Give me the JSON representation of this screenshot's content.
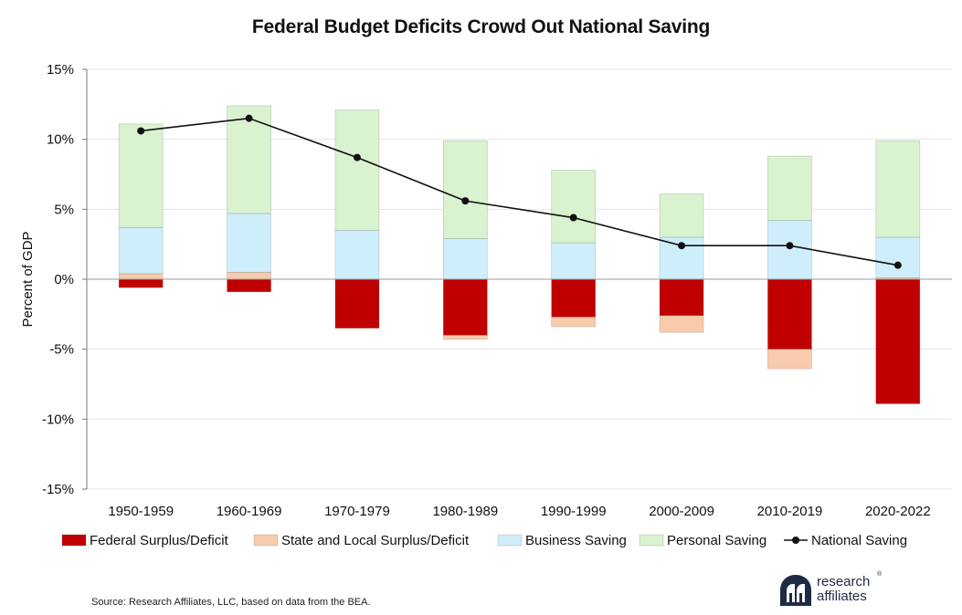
{
  "chart_data": {
    "type": "bar",
    "title": "Federal Budget Deficits Crowd Out National Saving",
    "ylabel": "Percent of GDP",
    "xlabel": "",
    "ylim": [
      -15,
      15
    ],
    "yticks": [
      15,
      10,
      5,
      0,
      -5,
      -10,
      -15
    ],
    "ytick_labels": [
      "15%",
      "10%",
      "5%",
      "0%",
      "-5%",
      "-10%",
      "-15%"
    ],
    "grid": true,
    "legend_position": "bottom",
    "categories": [
      "1950-1959",
      "1960-1969",
      "1970-1979",
      "1980-1989",
      "1990-1999",
      "2000-2009",
      "2010-2019",
      "2020-2022"
    ],
    "series": [
      {
        "name": "Federal Surplus/Deficit",
        "kind": "bar",
        "color": "#c00000",
        "values": [
          -0.6,
          -0.9,
          -3.5,
          -4.0,
          -2.7,
          -2.6,
          -5.0,
          -8.9
        ]
      },
      {
        "name": "State and Local Surplus/Deficit",
        "kind": "bar",
        "color": "#f8cbad",
        "values": [
          0.4,
          0.5,
          0.0,
          -0.3,
          -0.7,
          -1.2,
          -1.4,
          0.1
        ]
      },
      {
        "name": "Business Saving",
        "kind": "bar",
        "color": "#cfeefc",
        "values": [
          3.3,
          4.2,
          3.5,
          2.9,
          2.6,
          3.0,
          4.2,
          2.9
        ]
      },
      {
        "name": "Personal Saving",
        "kind": "bar",
        "color": "#d9f2d0",
        "values": [
          7.4,
          7.7,
          8.6,
          7.0,
          5.2,
          3.1,
          4.6,
          6.9
        ]
      },
      {
        "name": "National Saving",
        "kind": "line",
        "color": "#111111",
        "values": [
          10.6,
          11.5,
          8.7,
          5.6,
          4.4,
          2.4,
          2.4,
          1.0
        ]
      }
    ]
  },
  "footer": {
    "source": "Source: Research Affiliates, LLC, based on data from the BEA.",
    "logo_line1": "research",
    "logo_line2": "affiliates",
    "logo_reg": "®"
  }
}
